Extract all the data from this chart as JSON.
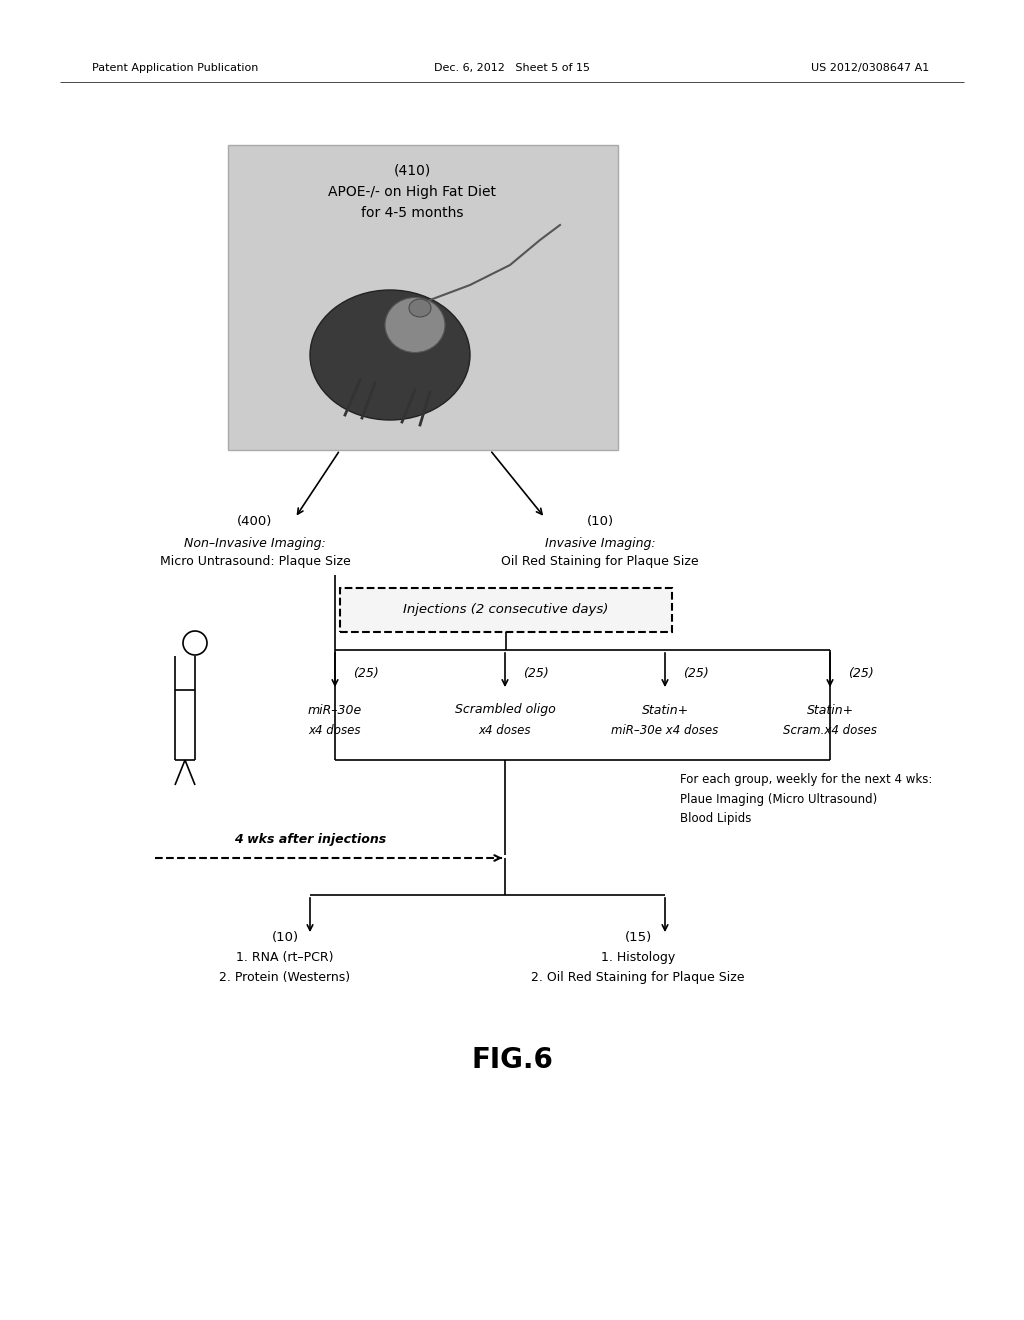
{
  "header_left": "Patent Application Publication",
  "header_center": "Dec. 6, 2012   Sheet 5 of 15",
  "header_right": "US 2012/0308647 A1",
  "fig_label": "FIG.6",
  "mouse_box_label": "(410)",
  "mouse_box_text1": "APOE-/- on High Fat Diet",
  "mouse_box_text2": "for 4-5 months",
  "left_branch_label": "(400)",
  "left_branch_text1": "Non–Invasive Imaging:",
  "left_branch_text2": "Micro Untrasound: Plaque Size",
  "right_branch_label": "(10)",
  "right_branch_text1": "Invasive Imaging:",
  "right_branch_text2": "Oil Red Staining for Plaque Size",
  "injections_box": "Injections (2 consecutive days)",
  "group_labels": [
    "(25)",
    "(25)",
    "(25)",
    "(25)"
  ],
  "group_text1": [
    "miR–30e",
    "Scrambled oligo",
    "Statin+",
    "Statin+"
  ],
  "group_text2": [
    "x4 doses",
    "x4 doses",
    "miR–30e x4 doses",
    "Scram.x4 doses"
  ],
  "followup_line1": "For each group, weekly for the next 4 wks:",
  "followup_line2": "Plaue Imaging (Micro Ultrasound)",
  "followup_line3": "Blood Lipids",
  "wks_label": "4 wks after injections",
  "outcome_left_label": "(10)",
  "outcome_left_text1": "1. RNA (rt–PCR)",
  "outcome_left_text2": "2. Protein (Westerns)",
  "outcome_right_label": "(15)",
  "outcome_right_text1": "1. Histology",
  "outcome_right_text2": "2. Oil Red Staining for Plaque Size",
  "bg_color": "#ffffff"
}
